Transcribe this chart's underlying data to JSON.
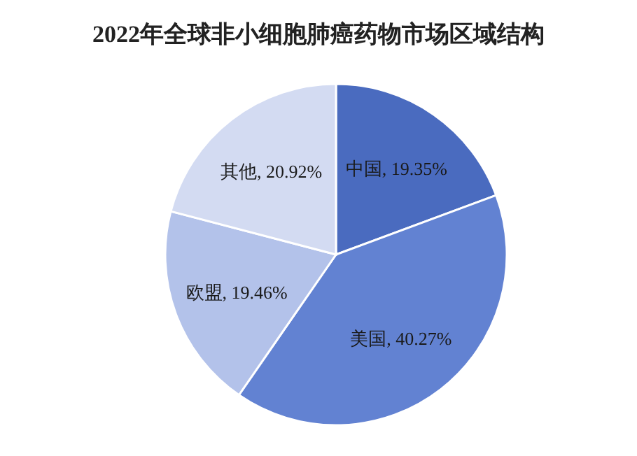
{
  "chart_data": {
    "type": "pie",
    "title": "2022年全球非小细胞肺癌药物市场区域结构",
    "categories": [
      "中国",
      "美国",
      "欧盟",
      "其他"
    ],
    "values": [
      19.35,
      40.27,
      19.46,
      20.92
    ],
    "value_labels": [
      "19.35%",
      "40.27%",
      "19.46%",
      "20.92%"
    ],
    "colors": [
      "#4a6bbf",
      "#6282d2",
      "#b3c2ea",
      "#d3dbf2"
    ]
  }
}
